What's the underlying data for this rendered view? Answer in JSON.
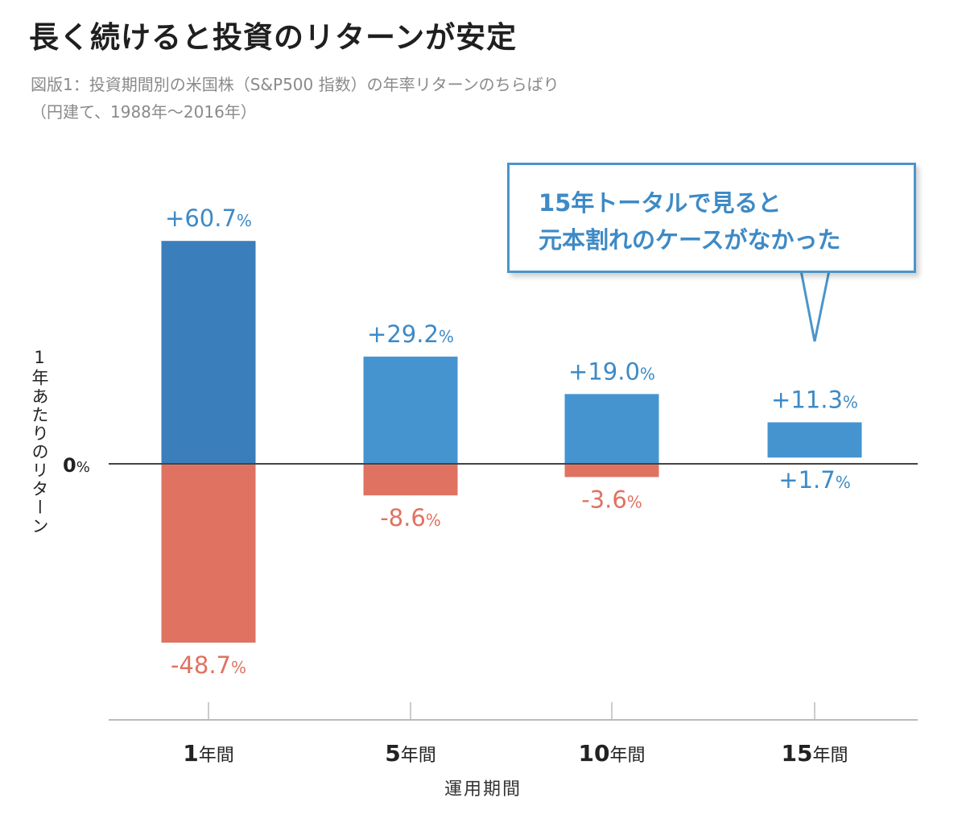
{
  "title": "長く続けると投資のリターンが安定",
  "subtitle_lines": [
    "図版1：投資期間別の米国株（S&P500 指数）の年率リターンのちらばり",
    "（円建て、1988年〜2016年）"
  ],
  "callout_lines": [
    "15年トータルで見ると",
    "元本割れのケースがなかった"
  ],
  "colors": {
    "positive": "#4594d0",
    "positive_dark": "#3a7ebc",
    "negative": "#e07261",
    "text_blue": "#3d8ac6",
    "axis": "#444444"
  },
  "chart_data": {
    "type": "bar",
    "title": "長く続けると投資のリターンが安定",
    "xlabel": "運用期間",
    "ylabel": "1年あたりのリターン",
    "zero_label": "0%",
    "categories": [
      "1年間",
      "5年間",
      "10年間",
      "15年間"
    ],
    "series": [
      {
        "values": [
          60.7,
          29.2,
          19.0,
          11.3
        ]
      },
      {
        "values": [
          -48.7,
          -8.6,
          -3.6,
          1.7
        ]
      }
    ],
    "data_labels": {
      "max": [
        "+60.7",
        "+29.2",
        "+19.0",
        "+11.3"
      ],
      "min": [
        "-48.7",
        "-8.6",
        "-3.6",
        "+1.7"
      ],
      "unit": "%"
    },
    "ylim": [
      -60,
      70
    ],
    "grid": false
  }
}
